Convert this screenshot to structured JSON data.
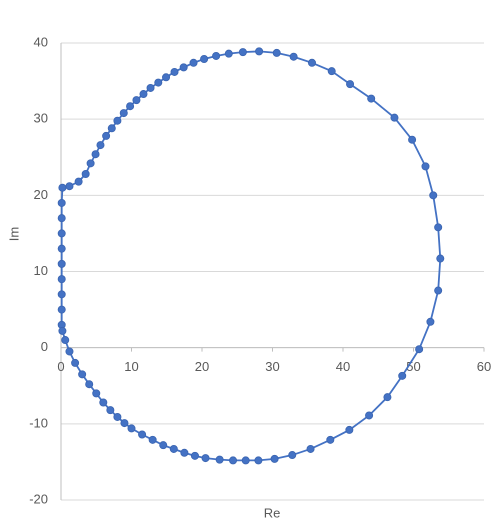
{
  "chart_data": {
    "type": "scatter",
    "x_label": "Re",
    "y_label": "Im",
    "xlim": [
      0,
      60
    ],
    "xticks": [
      0,
      10,
      20,
      30,
      40,
      50,
      60
    ],
    "ylim": [
      -20,
      40
    ],
    "yticks": [
      -20,
      -10,
      0,
      10,
      20,
      30,
      40
    ],
    "grid": true,
    "series": [
      {
        "color": "#4472c4",
        "x": [
          50.8,
          52.4,
          53.5,
          53.8,
          53.5,
          52.8,
          51.7,
          49.8,
          47.3,
          44,
          41,
          38.4,
          35.6,
          33,
          30.6,
          28.1,
          25.8,
          23.8,
          22,
          20.3,
          18.8,
          17.4,
          16.1,
          14.9,
          13.8,
          12.7,
          11.7,
          10.7,
          9.8,
          8.9,
          8,
          7.2,
          6.4,
          5.6,
          4.9,
          4.2,
          3.5,
          2.5,
          1.2,
          0.2,
          0.1,
          0.1,
          0.1,
          0.1,
          0.1,
          0.1,
          0.1,
          0.1,
          0.1,
          0.2,
          0.6,
          1.2,
          2,
          3,
          4,
          5,
          6,
          7,
          8,
          9,
          10,
          11.5,
          13,
          14.5,
          16,
          17.5,
          19,
          20.5,
          22.5,
          24.4,
          26.2,
          28,
          30.3,
          32.8,
          35.4,
          38.2,
          40.9,
          43.7,
          46.3,
          48.4
        ],
        "y": [
          -0.2,
          3.4,
          7.5,
          11.7,
          15.8,
          20,
          23.8,
          27.3,
          30.2,
          32.7,
          34.6,
          36.3,
          37.4,
          38.2,
          38.7,
          38.9,
          38.8,
          38.6,
          38.3,
          37.9,
          37.4,
          36.8,
          36.2,
          35.5,
          34.8,
          34.1,
          33.3,
          32.5,
          31.7,
          30.8,
          29.8,
          28.8,
          27.8,
          26.6,
          25.4,
          24.2,
          22.8,
          21.8,
          21.2,
          21,
          19,
          17,
          15,
          13,
          11,
          9,
          7,
          5,
          3,
          2.2,
          1,
          -0.5,
          -2,
          -3.5,
          -4.8,
          -6,
          -7.2,
          -8.2,
          -9.1,
          -9.9,
          -10.6,
          -11.4,
          -12.1,
          -12.8,
          -13.3,
          -13.8,
          -14.2,
          -14.5,
          -14.7,
          -14.8,
          -14.8,
          -14.8,
          -14.6,
          -14.1,
          -13.3,
          -12.1,
          -10.8,
          -8.9,
          -6.5,
          -3.7
        ]
      }
    ]
  }
}
